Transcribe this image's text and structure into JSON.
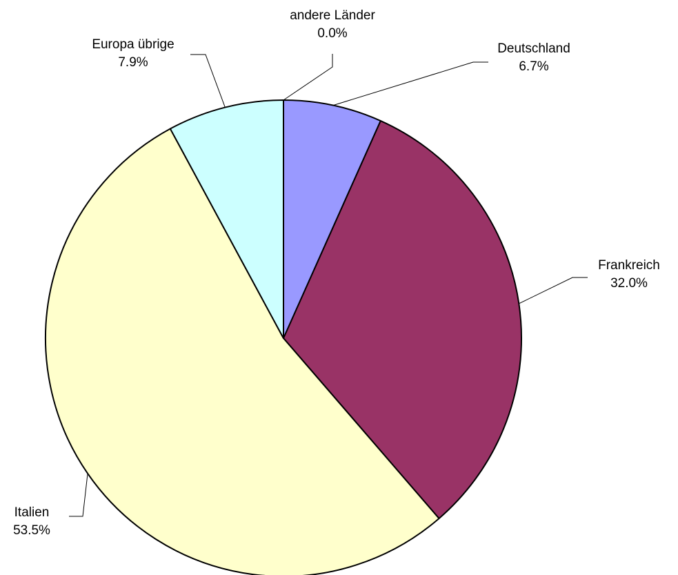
{
  "chart_data": {
    "type": "pie",
    "title": "",
    "start_angle_deg": 0,
    "direction": "clockwise",
    "slices": [
      {
        "label": "Deutschland",
        "value": 6.7,
        "percent_label": "6.7%",
        "color": "#9999FF"
      },
      {
        "label": "Frankreich",
        "value": 32.0,
        "percent_label": "32.0%",
        "color": "#993366"
      },
      {
        "label": "Italien",
        "value": 53.5,
        "percent_label": "53.5%",
        "color": "#FFFFCC"
      },
      {
        "label": "Europa übrige",
        "value": 7.9,
        "percent_label": "7.9%",
        "color": "#CCFFFF"
      },
      {
        "label": "andere Länder",
        "value": 0.0,
        "percent_label": "0.0%",
        "color": "#660066"
      }
    ],
    "outline_color": "#000000",
    "leader_line_color": "#000000"
  }
}
